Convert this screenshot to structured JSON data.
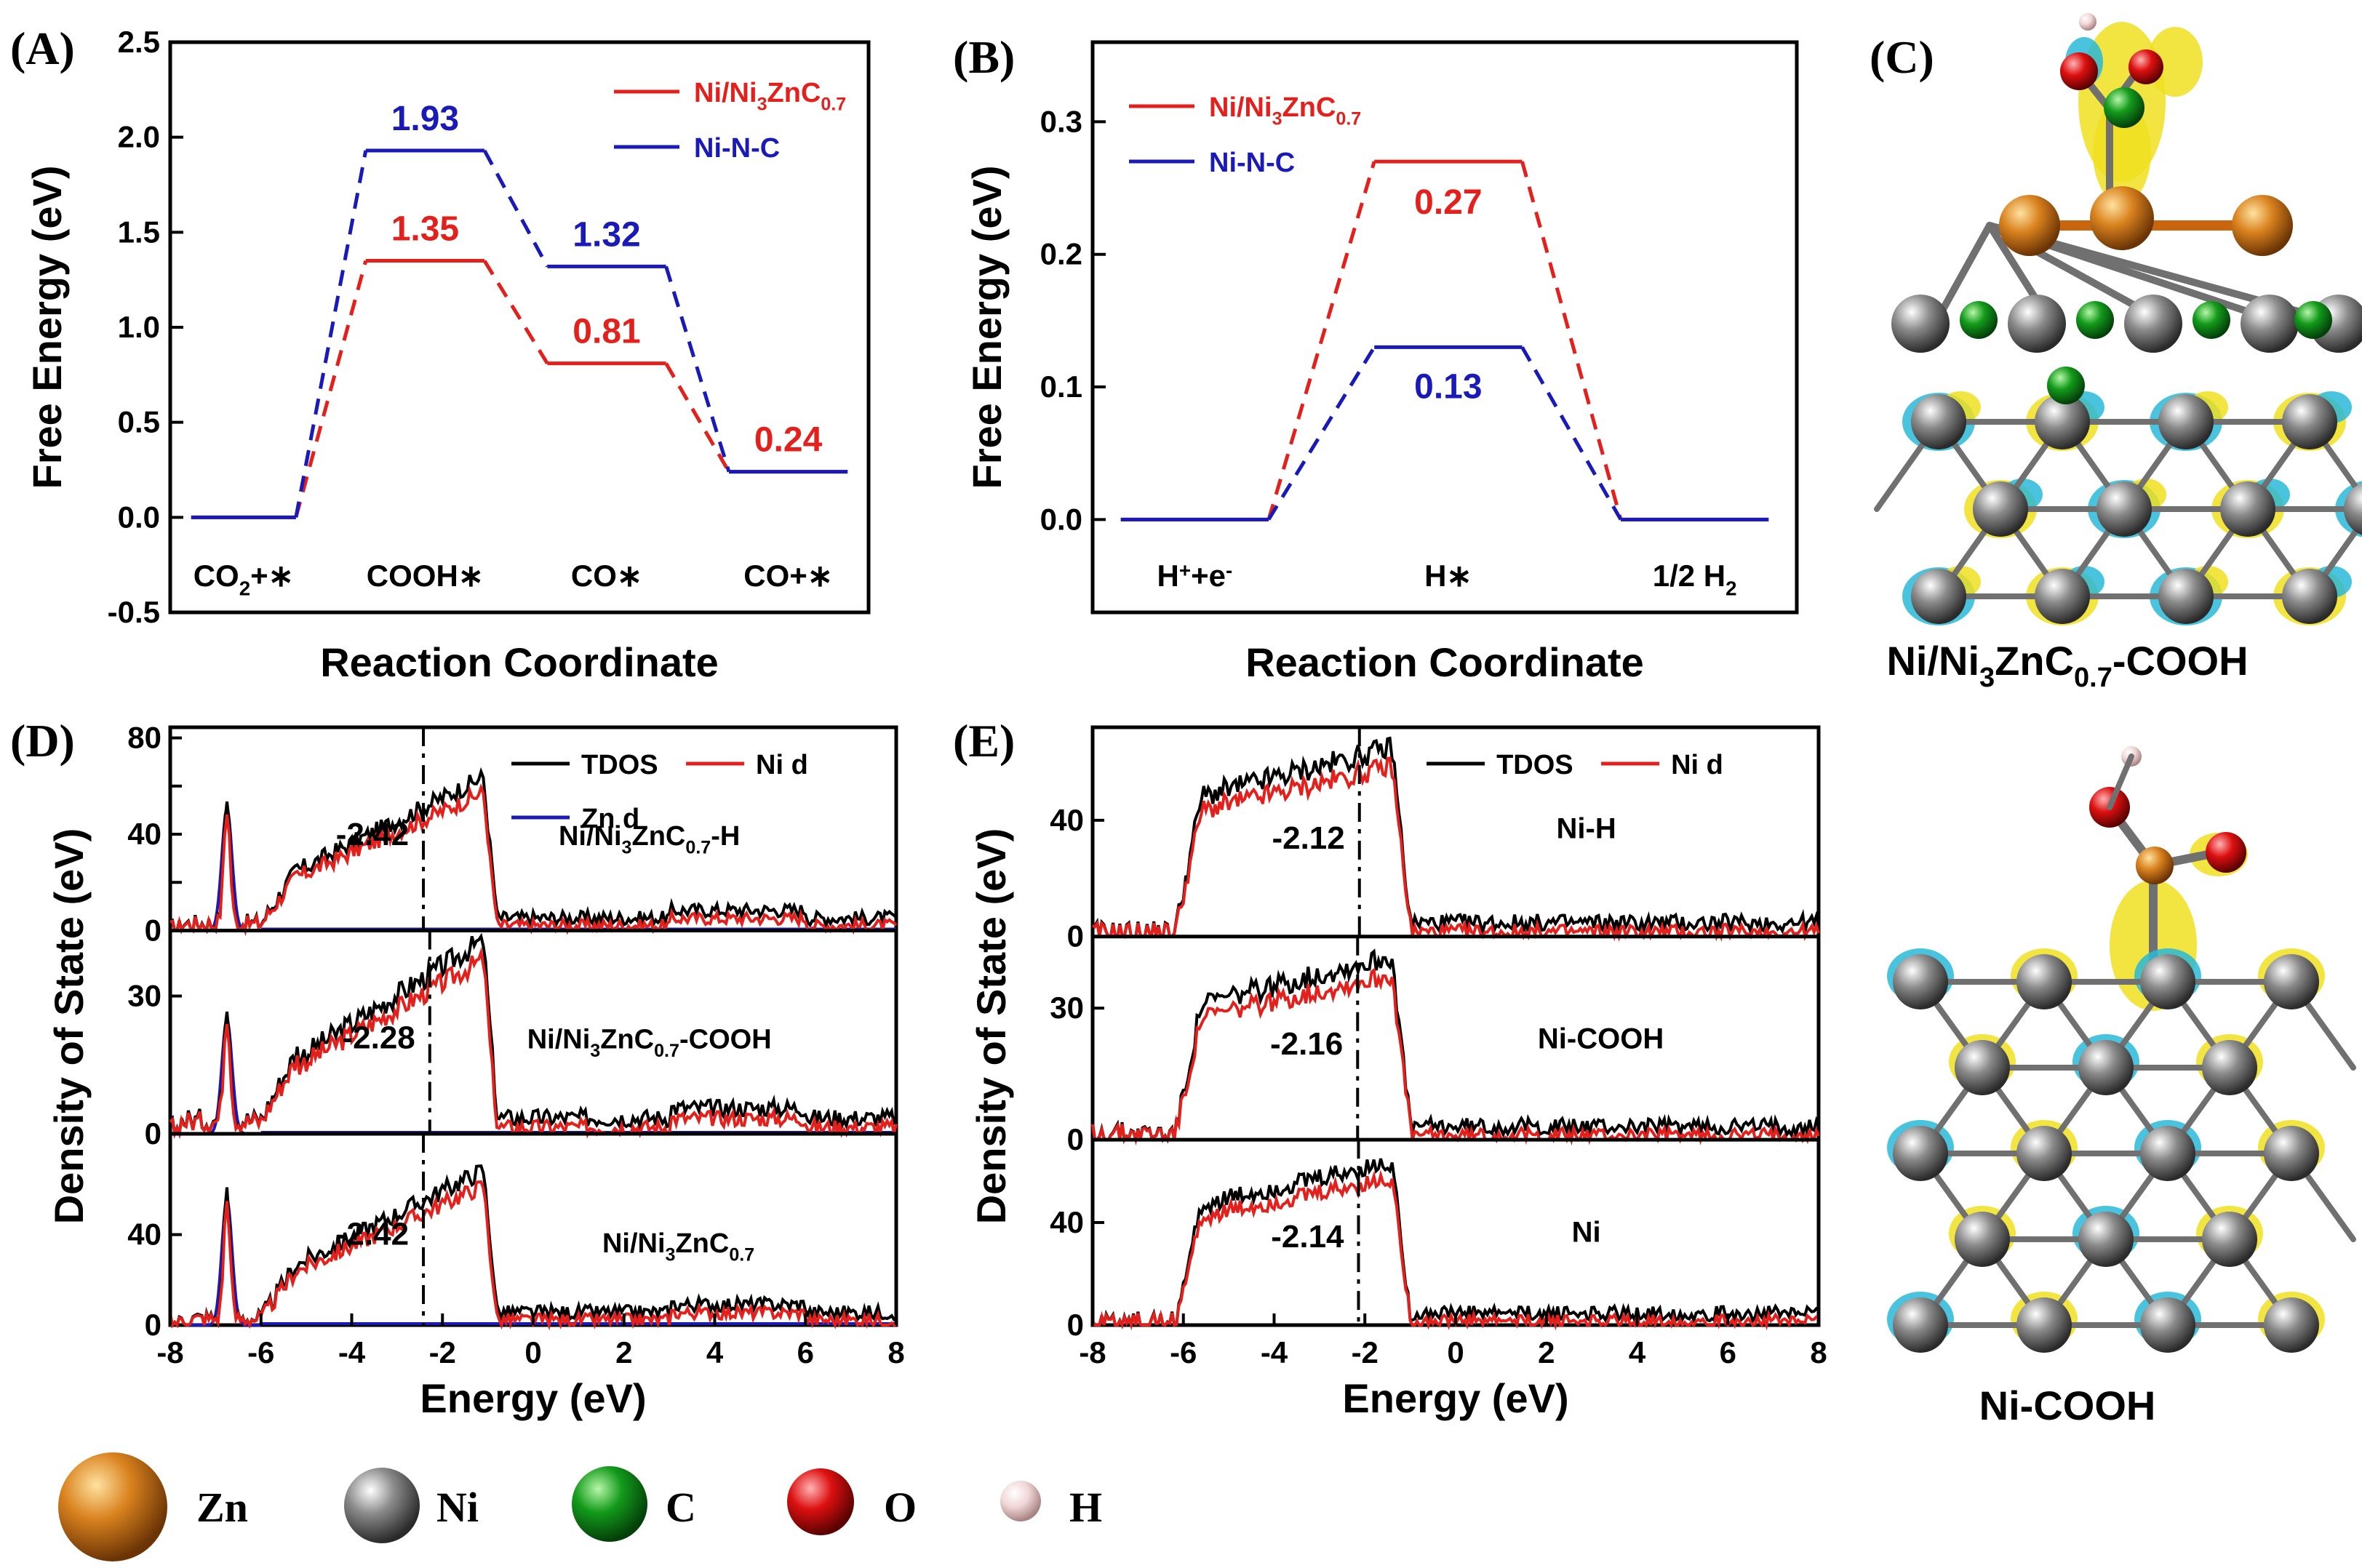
{
  "panels": {
    "a": "(A)",
    "b": "(B)",
    "c": "(C)",
    "d": "(D)",
    "e": "(E)"
  },
  "colors": {
    "red": "#e3201b",
    "blue": "#1a1ab8",
    "black": "#000000"
  },
  "chart_data": [
    {
      "id": "A",
      "type": "line",
      "title": "",
      "xlabel": "Reaction Coordinate",
      "ylabel": "Free Energy (eV)",
      "ylim": [
        -0.5,
        2.5
      ],
      "yticks": [
        "-0.5",
        "0.0",
        "0.5",
        "1.0",
        "1.5",
        "2.0",
        "2.5"
      ],
      "categories": [
        "CO2+*",
        "COOH*",
        "CO*",
        "CO+*"
      ],
      "category_labels": [
        {
          "main": "CO",
          "sub": "2",
          "tail": "+∗"
        },
        {
          "main": "COOH∗",
          "sub": "",
          "tail": ""
        },
        {
          "main": "CO∗",
          "sub": "",
          "tail": ""
        },
        {
          "main": "CO+∗",
          "sub": "",
          "tail": ""
        }
      ],
      "series": [
        {
          "name": "Ni/Ni3ZnC0.7",
          "legend": {
            "main": "Ni/Ni",
            "s1": "3",
            "mid": "ZnC",
            "s2": "0.7"
          },
          "values": [
            0.0,
            1.35,
            0.81,
            0.24
          ],
          "labels": [
            "",
            "1.35",
            "0.81",
            "0.24"
          ],
          "color": "#e3201b"
        },
        {
          "name": "Ni-N-C",
          "legend": {
            "main": "Ni-N-C",
            "s1": "",
            "mid": "",
            "s2": ""
          },
          "values": [
            0.0,
            1.93,
            1.32,
            0.24
          ],
          "labels": [
            "",
            "1.93",
            "1.32",
            ""
          ],
          "color": "#1a1ab8"
        }
      ]
    },
    {
      "id": "B",
      "type": "line",
      "title": "",
      "xlabel": "Reaction Coordinate",
      "ylabel": "Free Energy (eV)",
      "ylim": [
        -0.07,
        0.36
      ],
      "yticks": [
        "0.0",
        "0.1",
        "0.2",
        "0.3"
      ],
      "categories": [
        "H++e-",
        "H*",
        "1/2 H2"
      ],
      "category_labels": [
        {
          "main": "H",
          "sup": "+",
          "mid": "+e",
          "sup2": "-",
          "sub": ""
        },
        {
          "main": "H∗",
          "sup": "",
          "mid": "",
          "sup2": "",
          "sub": ""
        },
        {
          "main": "1/2 H",
          "sup": "",
          "mid": "",
          "sup2": "",
          "sub": "2"
        }
      ],
      "series": [
        {
          "name": "Ni/Ni3ZnC0.7",
          "legend": {
            "main": "Ni/Ni",
            "s1": "3",
            "mid": "ZnC",
            "s2": "0.7"
          },
          "values": [
            0.0,
            0.27,
            0.0
          ],
          "labels": [
            "",
            "0.27",
            ""
          ],
          "color": "#e3201b"
        },
        {
          "name": "Ni-N-C",
          "legend": {
            "main": "Ni-N-C",
            "s1": "",
            "mid": "",
            "s2": ""
          },
          "values": [
            0.0,
            0.13,
            0.0
          ],
          "labels": [
            "",
            "0.13",
            ""
          ],
          "color": "#1a1ab8"
        }
      ]
    },
    {
      "id": "D",
      "type": "line",
      "xlabel": "Energy (eV)",
      "ylabel": "Density of State (eV)",
      "xlim": [
        -8,
        8
      ],
      "xticks": [
        "-8",
        "-6",
        "-4",
        "-2",
        "0",
        "2",
        "4",
        "6",
        "8"
      ],
      "legend": [
        "TDOS",
        "Ni d",
        "Zn d"
      ],
      "subplots": [
        {
          "label": {
            "main": "Ni/Ni",
            "s1": "3",
            "mid": "ZnC",
            "s2": "0.7",
            "tail": "-H"
          },
          "center": "-2.42",
          "center_x": -2.42,
          "ylim": [
            0,
            82
          ],
          "yticks": [
            "0",
            "20",
            "40",
            "60",
            "80"
          ],
          "ytick_labels": [
            "0",
            "",
            "40",
            "",
            "80"
          ],
          "peak": 65,
          "zn_peak": 53
        },
        {
          "label": {
            "main": "Ni/Ni",
            "s1": "3",
            "mid": "ZnC",
            "s2": "0.7",
            "tail": "-COOH"
          },
          "center": "-2.28",
          "center_x": -2.28,
          "ylim": [
            0,
            43
          ],
          "yticks": [
            "0",
            "30"
          ],
          "ytick_labels": [
            "0",
            "30"
          ],
          "peak": 43,
          "zn_peak": 26
        },
        {
          "label": {
            "main": "Ni/Ni",
            "s1": "3",
            "mid": "ZnC",
            "s2": "0.7",
            "tail": ""
          },
          "center": "-2.42",
          "center_x": -2.42,
          "ylim": [
            0,
            82
          ],
          "yticks": [
            "0",
            "40"
          ],
          "ytick_labels": [
            "0",
            "40"
          ],
          "peak": 70,
          "zn_peak": 58
        }
      ]
    },
    {
      "id": "E",
      "type": "line",
      "xlabel": "Energy (eV)",
      "ylabel": "Density of State (eV)",
      "xlim": [
        -8,
        8
      ],
      "xticks": [
        "-8",
        "-6",
        "-4",
        "-2",
        "0",
        "2",
        "4",
        "6",
        "8"
      ],
      "legend": [
        "TDOS",
        "Ni d"
      ],
      "subplots": [
        {
          "label": "Ni-H",
          "center": "-2.12",
          "center_x": -2.12,
          "ylim": [
            0,
            70
          ],
          "yticks": [
            "0",
            "40"
          ],
          "peak": 67
        },
        {
          "label": "Ni-COOH",
          "center": "-2.16",
          "center_x": -2.16,
          "ylim": [
            0,
            45
          ],
          "yticks": [
            "0",
            "30"
          ],
          "peak": 43
        },
        {
          "label": "Ni",
          "center": "-2.14",
          "center_x": -2.14,
          "ylim": [
            0,
            70
          ],
          "yticks": [
            "0",
            "40"
          ],
          "peak": 65
        }
      ]
    }
  ],
  "structures": {
    "top_caption": {
      "main": "Ni/Ni",
      "s1": "3",
      "mid": "ZnC",
      "s2": "0.7",
      "tail": "-COOH"
    },
    "bottom_caption": "Ni-COOH"
  },
  "atom_legend": [
    {
      "label": "Zn",
      "color": "#c8650e"
    },
    {
      "label": "Ni",
      "color": "#6e6e6e"
    },
    {
      "label": "C",
      "color": "#0f8a16"
    },
    {
      "label": "O",
      "color": "#d40d0d"
    },
    {
      "label": "H",
      "color": "#e8c8c8"
    }
  ]
}
